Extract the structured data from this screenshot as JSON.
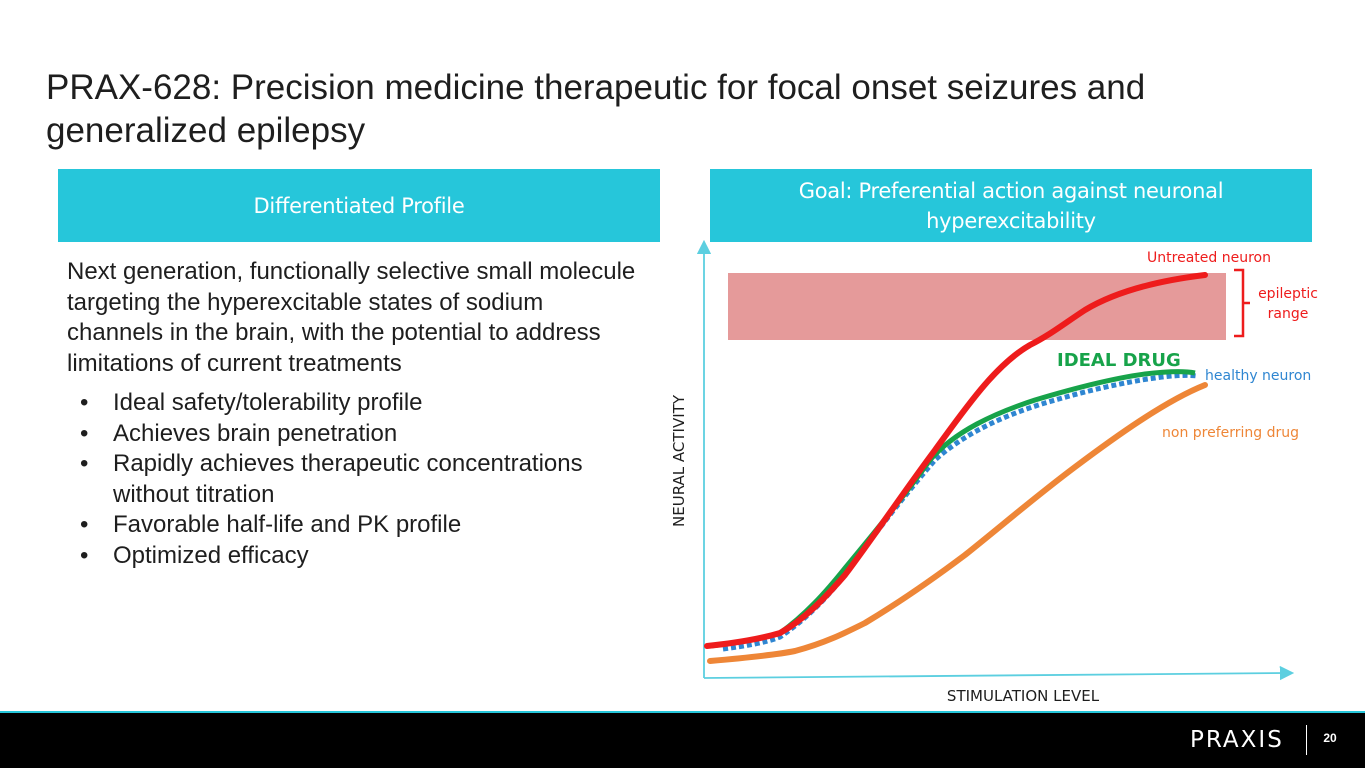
{
  "title": "PRAX-628: Precision medicine therapeutic for focal onset seizures and generalized epilepsy",
  "left_panel": {
    "header": "Differentiated Profile",
    "intro": "Next generation, functionally selective small molecule targeting the hyperexcitable states of sodium channels in the brain, with the potential to address limitations of current treatments",
    "bullets": [
      "Ideal safety/tolerability profile",
      "Achieves brain penetration",
      "Rapidly achieves therapeutic concentrations without titration",
      "Favorable half-life and PK profile",
      "Optimized efficacy"
    ]
  },
  "right_panel": {
    "header_line1": "Goal: Preferential action against neuronal",
    "header_line2": "hyperexcitability"
  },
  "chart_data": {
    "type": "line",
    "xlabel": "STIMULATION LEVEL",
    "ylabel": "NEURAL ACTIVITY",
    "annotations": {
      "untreated": "Untreated neuron",
      "epileptic_range_line1": "epileptic",
      "epileptic_range_line2": "range",
      "ideal_drug": "IDEAL DRUG",
      "healthy": "healthy neuron",
      "non_preferring": "non preferring drug"
    },
    "series_colors": {
      "untreated": "#ee1c1c",
      "ideal_drug": "#17a34a",
      "healthy": "#2f86d1",
      "non_preferring": "#ee8637",
      "epileptic_band": "#e59a9a",
      "axis": "#5ccfe0"
    }
  },
  "footer": {
    "logo_text": "PRAXIS",
    "page_number": "20"
  },
  "colors": {
    "accent": "#26c6da",
    "footer_bg": "#000000"
  }
}
